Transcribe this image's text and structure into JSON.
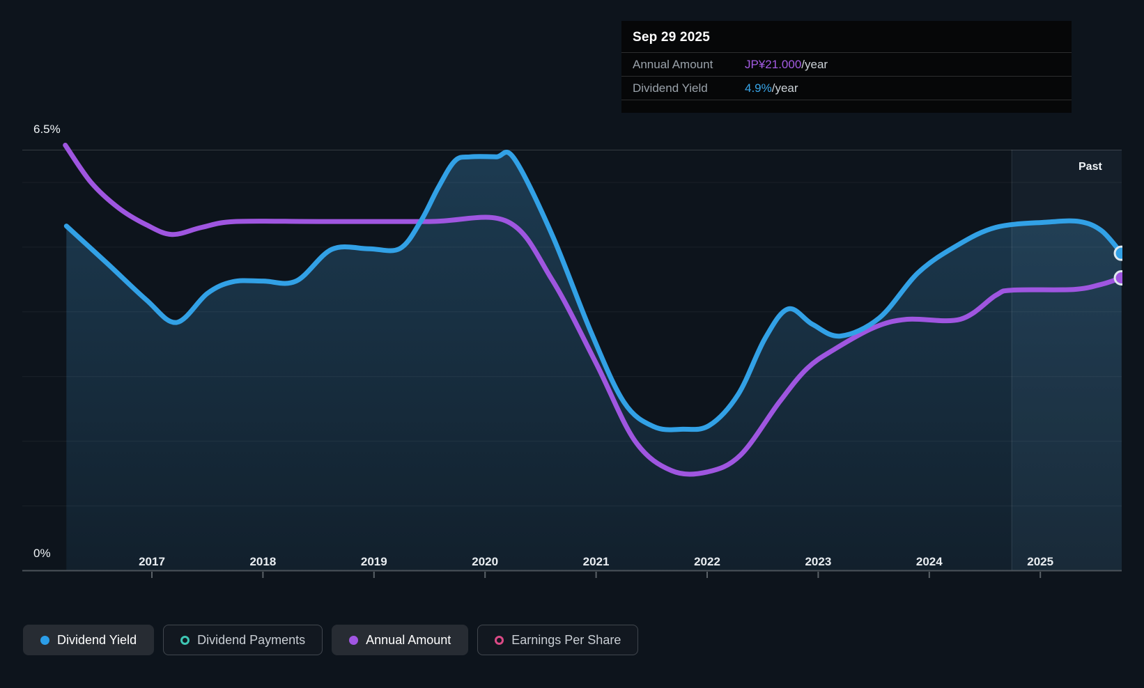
{
  "tooltip": {
    "date": "Sep 29 2025",
    "rows": [
      {
        "label": "Annual Amount",
        "value": "JP¥21.000",
        "suffix": "/year",
        "color": "#a35be2"
      },
      {
        "label": "Dividend Yield",
        "value": "4.9%",
        "suffix": "/year",
        "color": "#38a6ea"
      }
    ]
  },
  "axis": {
    "y_max_label": "6.5%",
    "y_min_label": "0%",
    "years": [
      "2017",
      "2018",
      "2019",
      "2020",
      "2021",
      "2022",
      "2023",
      "2024",
      "2025"
    ]
  },
  "past_label": "Past",
  "legend": [
    {
      "label": "Dividend Yield",
      "marker": "filled",
      "color": "#2b9de8",
      "active": true
    },
    {
      "label": "Dividend Payments",
      "marker": "ring",
      "color": "#3ec6b4",
      "active": false
    },
    {
      "label": "Annual Amount",
      "marker": "filled",
      "color": "#a156e3",
      "active": true
    },
    {
      "label": "Earnings Per Share",
      "marker": "ring",
      "color": "#db4a86",
      "active": false
    }
  ],
  "colors": {
    "background": "#0d141c",
    "dividend_yield_line": "#32a1e6",
    "annual_amount_line": "#9f56e0",
    "area_fill": "rgba(60,138,190,0.32)",
    "gridline": "rgba(255,255,255,0.06)",
    "top_border": "rgba(255,255,255,0.17)",
    "axis_line": "#4c535a",
    "past_overlay": "rgba(130,190,225,0.07)",
    "past_divider": "rgba(255,255,255,0.10)",
    "dot_stroke": "#dfe8ee"
  },
  "chart_data": {
    "type": "line",
    "title": "Dividend history chart",
    "x_unit": "year",
    "y_unit": "dividend yield %",
    "x_range": [
      2016.2,
      2025.75
    ],
    "y_range": [
      0,
      6.5
    ],
    "grid_percents": [
      1,
      2,
      3,
      4,
      5,
      6
    ],
    "past_divider_x": 2024.74,
    "legend_position": "bottom",
    "series": [
      {
        "name": "Dividend Yield",
        "end_value": "4.9%/year",
        "color": "#32a1e6",
        "area": true,
        "end_dot": true,
        "points": [
          [
            2016.23,
            5.32
          ],
          [
            2016.6,
            4.74
          ],
          [
            2016.95,
            4.18
          ],
          [
            2017.22,
            3.83
          ],
          [
            2017.5,
            4.28
          ],
          [
            2017.73,
            4.46
          ],
          [
            2018.0,
            4.47
          ],
          [
            2018.3,
            4.47
          ],
          [
            2018.62,
            4.96
          ],
          [
            2018.95,
            4.97
          ],
          [
            2019.23,
            4.97
          ],
          [
            2019.42,
            5.39
          ],
          [
            2019.58,
            5.92
          ],
          [
            2019.73,
            6.33
          ],
          [
            2019.87,
            6.39
          ],
          [
            2020.1,
            6.39
          ],
          [
            2020.26,
            6.37
          ],
          [
            2020.6,
            5.2
          ],
          [
            2020.95,
            3.7
          ],
          [
            2021.25,
            2.6
          ],
          [
            2021.52,
            2.22
          ],
          [
            2021.78,
            2.18
          ],
          [
            2022.02,
            2.24
          ],
          [
            2022.28,
            2.72
          ],
          [
            2022.52,
            3.58
          ],
          [
            2022.73,
            4.04
          ],
          [
            2022.95,
            3.8
          ],
          [
            2023.2,
            3.62
          ],
          [
            2023.55,
            3.9
          ],
          [
            2023.9,
            4.6
          ],
          [
            2024.25,
            5.02
          ],
          [
            2024.6,
            5.3
          ],
          [
            2025.05,
            5.38
          ],
          [
            2025.35,
            5.39
          ],
          [
            2025.55,
            5.25
          ],
          [
            2025.73,
            4.9
          ]
        ]
      },
      {
        "name": "Annual Amount",
        "end_value": "JP¥21.000/year",
        "color": "#9f56e0",
        "area": false,
        "end_dot": true,
        "points": [
          [
            2016.22,
            6.57
          ],
          [
            2016.45,
            6.0
          ],
          [
            2016.7,
            5.6
          ],
          [
            2016.95,
            5.34
          ],
          [
            2017.18,
            5.19
          ],
          [
            2017.45,
            5.3
          ],
          [
            2017.75,
            5.39
          ],
          [
            2018.5,
            5.39
          ],
          [
            2019.5,
            5.39
          ],
          [
            2020.2,
            5.39
          ],
          [
            2020.6,
            4.5
          ],
          [
            2021.0,
            3.2
          ],
          [
            2021.35,
            2.0
          ],
          [
            2021.68,
            1.54
          ],
          [
            2022.0,
            1.52
          ],
          [
            2022.3,
            1.78
          ],
          [
            2022.65,
            2.6
          ],
          [
            2022.9,
            3.12
          ],
          [
            2023.15,
            3.42
          ],
          [
            2023.5,
            3.75
          ],
          [
            2023.8,
            3.88
          ],
          [
            2024.28,
            3.88
          ],
          [
            2024.6,
            4.25
          ],
          [
            2024.75,
            4.33
          ],
          [
            2025.3,
            4.34
          ],
          [
            2025.55,
            4.42
          ],
          [
            2025.73,
            4.52
          ]
        ]
      }
    ]
  }
}
